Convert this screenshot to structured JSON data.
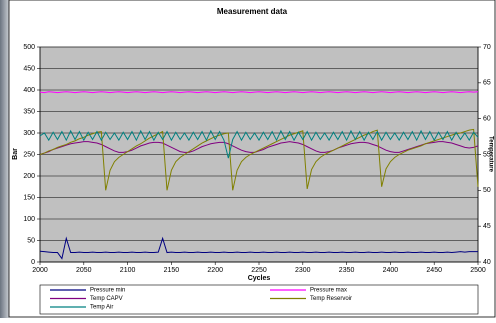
{
  "chart_data": {
    "type": "line",
    "title": "Measurement data",
    "x_label": "Cycles",
    "y_label": "Bar",
    "y2_label": "Temperature",
    "xlim": [
      2000,
      2500
    ],
    "xticks": [
      2000,
      2050,
      2100,
      2150,
      2200,
      2250,
      2300,
      2350,
      2400,
      2450,
      2500
    ],
    "ylim": [
      0,
      500
    ],
    "yticks": [
      0,
      50,
      100,
      150,
      200,
      250,
      300,
      350,
      400,
      450,
      500
    ],
    "y2lim": [
      40,
      70
    ],
    "y2ticks": [
      40,
      45,
      50,
      55,
      60,
      65,
      70
    ],
    "grid": true,
    "legend": "bottom",
    "x": [
      2000,
      2005,
      2010,
      2015,
      2020,
      2025,
      2030,
      2035,
      2040,
      2045,
      2050,
      2055,
      2060,
      2065,
      2070,
      2075,
      2080,
      2085,
      2090,
      2095,
      2100,
      2105,
      2110,
      2115,
      2120,
      2125,
      2130,
      2135,
      2140,
      2145,
      2150,
      2155,
      2160,
      2165,
      2170,
      2175,
      2180,
      2185,
      2190,
      2195,
      2200,
      2205,
      2210,
      2215,
      2220,
      2225,
      2230,
      2235,
      2240,
      2245,
      2250,
      2255,
      2260,
      2265,
      2270,
      2275,
      2280,
      2285,
      2290,
      2295,
      2300,
      2305,
      2310,
      2315,
      2320,
      2325,
      2330,
      2335,
      2340,
      2345,
      2350,
      2355,
      2360,
      2365,
      2370,
      2375,
      2380,
      2385,
      2390,
      2395,
      2400,
      2405,
      2410,
      2415,
      2420,
      2425,
      2430,
      2435,
      2440,
      2445,
      2450,
      2455,
      2460,
      2465,
      2470,
      2475,
      2480,
      2485,
      2490,
      2495,
      2500
    ],
    "series": [
      {
        "name": "Pressure min",
        "color": "#000080",
        "axis": "y",
        "values": [
          25,
          24,
          23,
          22,
          22,
          8,
          55,
          22,
          22,
          23,
          22,
          22,
          23,
          22,
          22,
          23,
          22,
          22,
          23,
          22,
          22,
          23,
          22,
          22,
          23,
          22,
          22,
          23,
          55,
          22,
          23,
          22,
          22,
          23,
          22,
          22,
          23,
          22,
          22,
          23,
          22,
          22,
          23,
          22,
          22,
          23,
          22,
          22,
          23,
          22,
          22,
          23,
          22,
          22,
          23,
          22,
          22,
          23,
          22,
          22,
          23,
          22,
          22,
          23,
          22,
          22,
          23,
          22,
          22,
          23,
          22,
          22,
          23,
          22,
          22,
          23,
          22,
          22,
          23,
          22,
          22,
          23,
          22,
          22,
          23,
          22,
          22,
          23,
          22,
          22,
          23,
          22,
          22,
          23,
          22,
          23,
          24,
          23,
          24,
          24,
          24
        ]
      },
      {
        "name": "Pressure max",
        "color": "#ff00ff",
        "axis": "y",
        "values": [
          395,
          394,
          396,
          395,
          394,
          395,
          396,
          395,
          394,
          395,
          396,
          395,
          394,
          395,
          396,
          395,
          394,
          395,
          396,
          395,
          394,
          395,
          396,
          395,
          394,
          395,
          396,
          395,
          394,
          395,
          396,
          395,
          394,
          395,
          396,
          395,
          394,
          395,
          396,
          395,
          394,
          395,
          396,
          395,
          394,
          395,
          396,
          395,
          394,
          395,
          396,
          395,
          394,
          395,
          396,
          395,
          394,
          395,
          396,
          395,
          394,
          395,
          396,
          395,
          394,
          395,
          396,
          395,
          394,
          395,
          396,
          395,
          394,
          395,
          396,
          395,
          394,
          395,
          396,
          395,
          394,
          395,
          396,
          395,
          394,
          395,
          396,
          395,
          394,
          395,
          396,
          395,
          394,
          395,
          396,
          395,
          394,
          395,
          396,
          395,
          396
        ]
      },
      {
        "name": "Temp CAPV",
        "color": "#800080",
        "axis": "y2",
        "values": [
          55.0,
          55.2,
          55.4,
          55.7,
          55.9,
          56.1,
          56.3,
          56.5,
          56.6,
          56.7,
          56.8,
          56.8,
          56.7,
          56.6,
          56.4,
          56.1,
          55.8,
          55.5,
          55.3,
          55.3,
          55.4,
          55.6,
          55.9,
          56.2,
          56.4,
          56.6,
          56.7,
          56.7,
          56.6,
          56.3,
          56.0,
          55.7,
          55.4,
          55.3,
          55.3,
          55.5,
          55.8,
          56.1,
          56.3,
          56.5,
          56.6,
          56.7,
          56.7,
          56.5,
          56.2,
          55.9,
          55.6,
          55.4,
          55.3,
          55.3,
          55.5,
          55.7,
          56.0,
          56.2,
          56.4,
          56.6,
          56.7,
          56.8,
          56.7,
          56.6,
          56.4,
          56.1,
          55.8,
          55.5,
          55.3,
          55.3,
          55.4,
          55.6,
          55.9,
          56.1,
          56.3,
          56.5,
          56.6,
          56.7,
          56.7,
          56.6,
          56.4,
          56.2,
          55.9,
          55.6,
          55.4,
          55.3,
          55.3,
          55.5,
          55.7,
          55.9,
          56.1,
          56.3,
          56.5,
          56.6,
          56.7,
          56.8,
          56.8,
          56.7,
          56.6,
          56.4,
          56.2,
          56.0,
          55.9,
          56.0,
          56.2
        ]
      },
      {
        "name": "Temp Reservoir",
        "color": "#808000",
        "axis": "y2",
        "values": [
          55.0,
          55.2,
          55.5,
          55.7,
          56.0,
          56.2,
          56.4,
          56.7,
          56.9,
          57.2,
          57.4,
          57.7,
          57.9,
          58.1,
          58.2,
          50.0,
          52.8,
          54.0,
          54.6,
          55.0,
          55.4,
          55.8,
          56.2,
          56.5,
          56.9,
          57.3,
          57.6,
          57.9,
          58.2,
          50.0,
          52.8,
          54.0,
          54.6,
          55.0,
          55.4,
          55.8,
          56.2,
          56.6,
          56.9,
          57.2,
          57.5,
          57.7,
          57.9,
          58.0,
          50.0,
          52.8,
          54.0,
          54.6,
          55.0,
          55.3,
          55.6,
          55.9,
          56.2,
          56.5,
          56.8,
          57.1,
          57.4,
          57.7,
          57.9,
          58.1,
          58.3,
          50.2,
          52.9,
          54.0,
          54.6,
          55.0,
          55.3,
          55.6,
          55.9,
          56.2,
          56.5,
          56.8,
          57.1,
          57.4,
          57.7,
          57.9,
          58.2,
          58.4,
          50.5,
          53.0,
          54.0,
          54.6,
          55.0,
          55.3,
          55.6,
          55.8,
          56.0,
          56.2,
          56.5,
          56.7,
          56.9,
          57.1,
          57.3,
          57.5,
          57.7,
          57.9,
          58.0,
          58.2,
          58.4,
          58.5,
          50.5
        ]
      },
      {
        "name": "Temp Air",
        "color": "#008080",
        "axis": "y2",
        "values": [
          57.6,
          58.0,
          57.0,
          58.1,
          57.1,
          58.2,
          57.0,
          58.3,
          57.1,
          58.2,
          57.0,
          58.1,
          57.1,
          58.2,
          57.0,
          58.1,
          57.1,
          58.0,
          57.0,
          58.1,
          57.1,
          58.2,
          57.0,
          58.3,
          57.1,
          58.2,
          57.0,
          58.1,
          57.1,
          58.2,
          57.0,
          58.1,
          57.1,
          58.0,
          57.0,
          58.1,
          57.1,
          58.2,
          57.0,
          58.3,
          57.1,
          58.2,
          57.0,
          54.5,
          57.1,
          58.2,
          57.0,
          58.1,
          57.1,
          58.0,
          57.0,
          58.1,
          57.1,
          58.2,
          57.0,
          58.3,
          57.1,
          58.2,
          57.0,
          58.1,
          57.1,
          58.2,
          57.0,
          58.1,
          57.1,
          58.0,
          57.0,
          58.1,
          57.1,
          58.2,
          57.0,
          58.3,
          57.1,
          58.2,
          57.0,
          58.1,
          57.1,
          58.2,
          57.0,
          58.1,
          57.1,
          58.0,
          57.0,
          58.1,
          57.1,
          58.2,
          57.0,
          58.3,
          57.1,
          58.2,
          57.0,
          58.1,
          57.1,
          58.2,
          57.0,
          58.1,
          57.1,
          58.0,
          57.0,
          58.1,
          57.4
        ]
      }
    ]
  }
}
